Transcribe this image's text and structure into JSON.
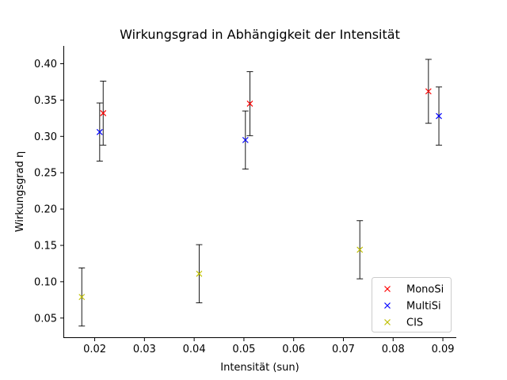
{
  "chart_data": {
    "type": "scatter",
    "title": "Wirkungsgrad in Abhängigkeit der Intensität",
    "xlabel": "Intensität (sun)",
    "ylabel": "Wirkungsgrad η",
    "xlim": [
      0.0137,
      0.0927
    ],
    "ylim": [
      0.0225,
      0.4245
    ],
    "x_ticks": [
      "0.02",
      "0.03",
      "0.04",
      "0.05",
      "0.06",
      "0.07",
      "0.08",
      "0.09"
    ],
    "y_ticks": [
      "0.05",
      "0.10",
      "0.15",
      "0.20",
      "0.25",
      "0.30",
      "0.35",
      "0.40"
    ],
    "grid": false,
    "legend_position": "lower right",
    "marker": "x",
    "errorbar_color": "#000000",
    "series": [
      {
        "name": "MonoSi",
        "color": "#ff0000",
        "points": [
          {
            "x": 0.0217,
            "y": 0.332,
            "yerr": 0.044
          },
          {
            "x": 0.0512,
            "y": 0.345,
            "yerr": 0.044
          },
          {
            "x": 0.0871,
            "y": 0.362,
            "yerr": 0.044
          }
        ]
      },
      {
        "name": "MultiSi",
        "color": "#0000ff",
        "points": [
          {
            "x": 0.021,
            "y": 0.306,
            "yerr": 0.04
          },
          {
            "x": 0.0503,
            "y": 0.295,
            "yerr": 0.04
          },
          {
            "x": 0.0892,
            "y": 0.328,
            "yerr": 0.04
          }
        ]
      },
      {
        "name": "CIS",
        "color": "#bfbf00",
        "points": [
          {
            "x": 0.0174,
            "y": 0.079,
            "yerr": 0.04
          },
          {
            "x": 0.041,
            "y": 0.111,
            "yerr": 0.04
          },
          {
            "x": 0.0733,
            "y": 0.144,
            "yerr": 0.04
          }
        ]
      }
    ]
  }
}
